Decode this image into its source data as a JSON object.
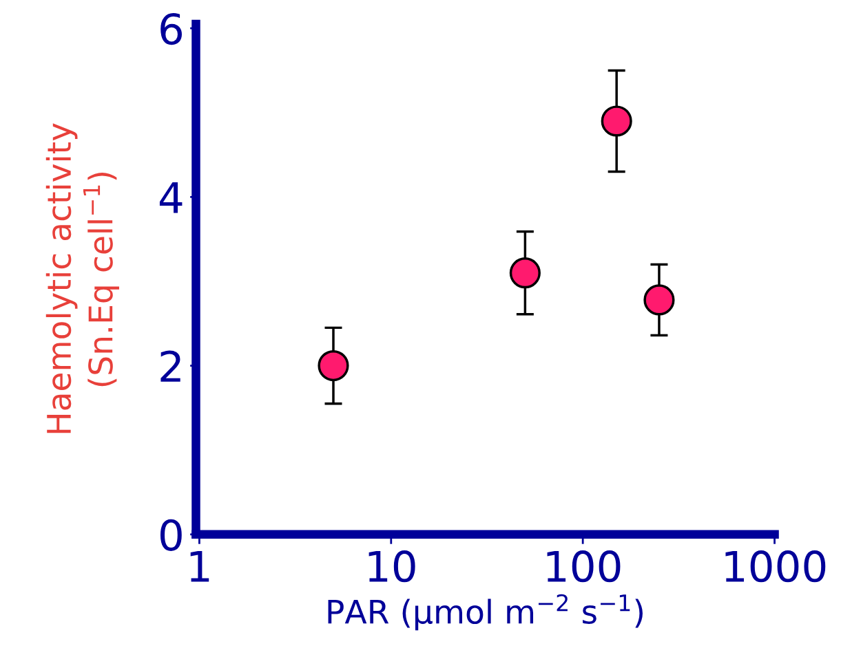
{
  "chart_data": {
    "type": "scatter",
    "xlabel": "PAR (µmol m$^{−2}$ s$^{−1}$)",
    "ylabel": "Haemolytic activity\n(Sn.Eq cell$^{−1}$)",
    "x": [
      5,
      50,
      150,
      250
    ],
    "series": [
      {
        "color": "#ff1a6e",
        "values": [
          2.0,
          3.1,
          4.9,
          2.78
        ],
        "errors": [
          0.45,
          0.49,
          0.6,
          0.42
        ]
      }
    ],
    "log": "x",
    "xlim": [
      0.96,
      1000
    ],
    "xticks": [
      1,
      10,
      100,
      1000
    ],
    "ylim": [
      0,
      6.05
    ],
    "yticks": [
      0,
      2,
      4,
      6
    ],
    "grid": false,
    "legend": false,
    "marker": "circle"
  }
}
